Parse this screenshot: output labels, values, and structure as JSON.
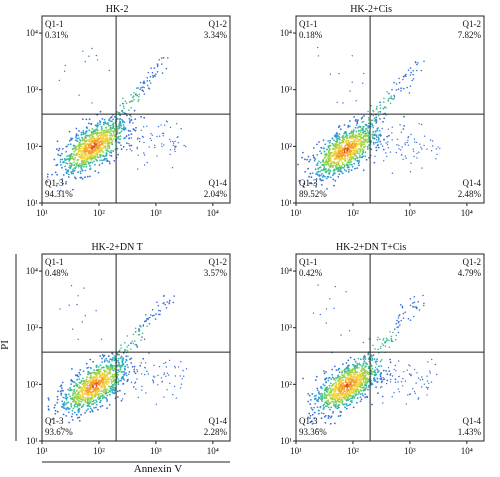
{
  "figure": {
    "xlabel": "Annexin V",
    "ylabel": "PI"
  },
  "chart_data": [
    {
      "type": "scatter",
      "title": "HK-2",
      "xscale": "log",
      "yscale": "log",
      "xlim": [
        10,
        20000
      ],
      "ylim": [
        10,
        20000
      ],
      "xticks": [
        "10¹",
        "10²",
        "10³",
        "10⁴"
      ],
      "yticks": [
        "10¹",
        "10²",
        "10³",
        "10⁴"
      ],
      "quadrant_gate": {
        "x": 200,
        "y": 370
      },
      "quadrants": [
        {
          "name": "Q1-1",
          "percent": "0.31%"
        },
        {
          "name": "Q1-2",
          "percent": "3.34%"
        },
        {
          "name": "Q1-3",
          "percent": "94.31%"
        },
        {
          "name": "Q1-4",
          "percent": "2.04%"
        }
      ],
      "population_center": {
        "x": 80,
        "y": 100
      }
    },
    {
      "type": "scatter",
      "title": "HK-2+Cis",
      "xscale": "log",
      "yscale": "log",
      "xlim": [
        10,
        20000
      ],
      "ylim": [
        10,
        20000
      ],
      "xticks": [
        "10¹",
        "10²",
        "10³",
        "10⁴"
      ],
      "yticks": [
        "10¹",
        "10²",
        "10³",
        "10⁴"
      ],
      "quadrant_gate": {
        "x": 200,
        "y": 370
      },
      "quadrants": [
        {
          "name": "Q1-1",
          "percent": "0.18%"
        },
        {
          "name": "Q1-2",
          "percent": "7.82%"
        },
        {
          "name": "Q1-3",
          "percent": "89.52%"
        },
        {
          "name": "Q1-4",
          "percent": "2.48%"
        }
      ],
      "population_center": {
        "x": 75,
        "y": 85
      }
    },
    {
      "type": "scatter",
      "title": "HK-2+DN T",
      "xscale": "log",
      "yscale": "log",
      "xlim": [
        10,
        20000
      ],
      "ylim": [
        10,
        20000
      ],
      "xticks": [
        "10¹",
        "10²",
        "10³",
        "10⁴"
      ],
      "yticks": [
        "10¹",
        "10²",
        "10³",
        "10⁴"
      ],
      "quadrant_gate": {
        "x": 200,
        "y": 370
      },
      "quadrants": [
        {
          "name": "Q1-1",
          "percent": "0.48%"
        },
        {
          "name": "Q1-2",
          "percent": "3.57%"
        },
        {
          "name": "Q1-3",
          "percent": "93.67%"
        },
        {
          "name": "Q1-4",
          "percent": "2.28%"
        }
      ],
      "population_center": {
        "x": 85,
        "y": 95
      }
    },
    {
      "type": "scatter",
      "title": "HK-2+DN T+Cis",
      "xscale": "log",
      "yscale": "log",
      "xlim": [
        10,
        20000
      ],
      "ylim": [
        10,
        20000
      ],
      "xticks": [
        "10¹",
        "10²",
        "10³",
        "10⁴"
      ],
      "yticks": [
        "10¹",
        "10²",
        "10³",
        "10⁴"
      ],
      "quadrant_gate": {
        "x": 200,
        "y": 370
      },
      "quadrants": [
        {
          "name": "Q1-1",
          "percent": "0.42%"
        },
        {
          "name": "Q1-2",
          "percent": "4.79%"
        },
        {
          "name": "Q1-3",
          "percent": "93.36%"
        },
        {
          "name": "Q1-4",
          "percent": "1.43%"
        }
      ],
      "population_center": {
        "x": 80,
        "y": 95
      }
    }
  ]
}
